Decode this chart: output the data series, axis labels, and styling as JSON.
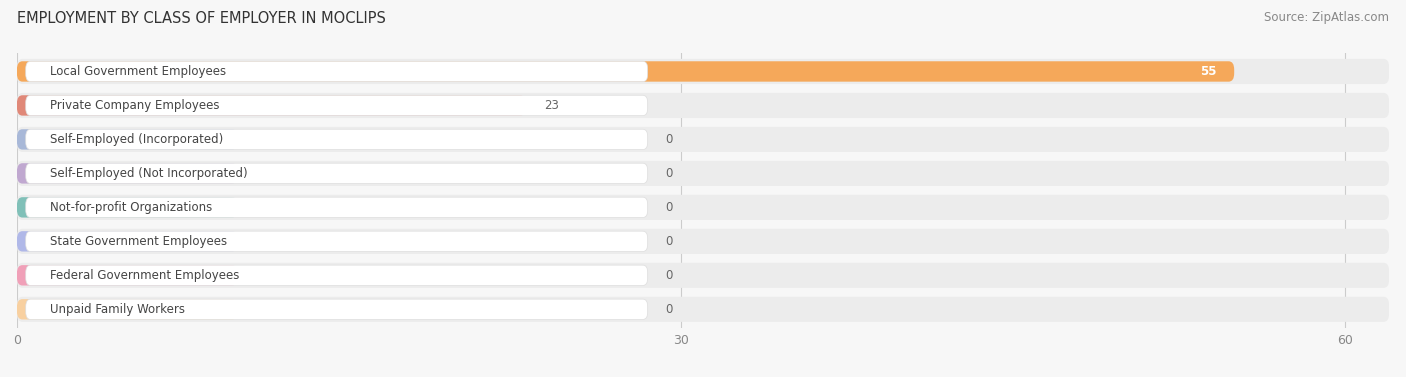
{
  "title": "EMPLOYMENT BY CLASS OF EMPLOYER IN MOCLIPS",
  "source": "Source: ZipAtlas.com",
  "categories": [
    "Local Government Employees",
    "Private Company Employees",
    "Self-Employed (Incorporated)",
    "Self-Employed (Not Incorporated)",
    "Not-for-profit Organizations",
    "State Government Employees",
    "Federal Government Employees",
    "Unpaid Family Workers"
  ],
  "values": [
    55,
    23,
    0,
    0,
    0,
    0,
    0,
    0
  ],
  "bar_colors": [
    "#f5a85a",
    "#e08878",
    "#a8b8d8",
    "#c0a8d0",
    "#80c0b8",
    "#b0b8e8",
    "#f0a0b8",
    "#f8d0a0"
  ],
  "xlim_max": 62,
  "xticks": [
    0,
    30,
    60
  ],
  "background_color": "#f7f7f7",
  "row_bg_color": "#ececec",
  "label_box_color": "#ffffff",
  "title_fontsize": 10.5,
  "source_fontsize": 8.5,
  "label_fontsize": 8.5,
  "value_fontsize": 8.5,
  "label_text_color": "#444444",
  "value_text_color_inside": "#ffffff",
  "value_text_color_outside": "#666666"
}
